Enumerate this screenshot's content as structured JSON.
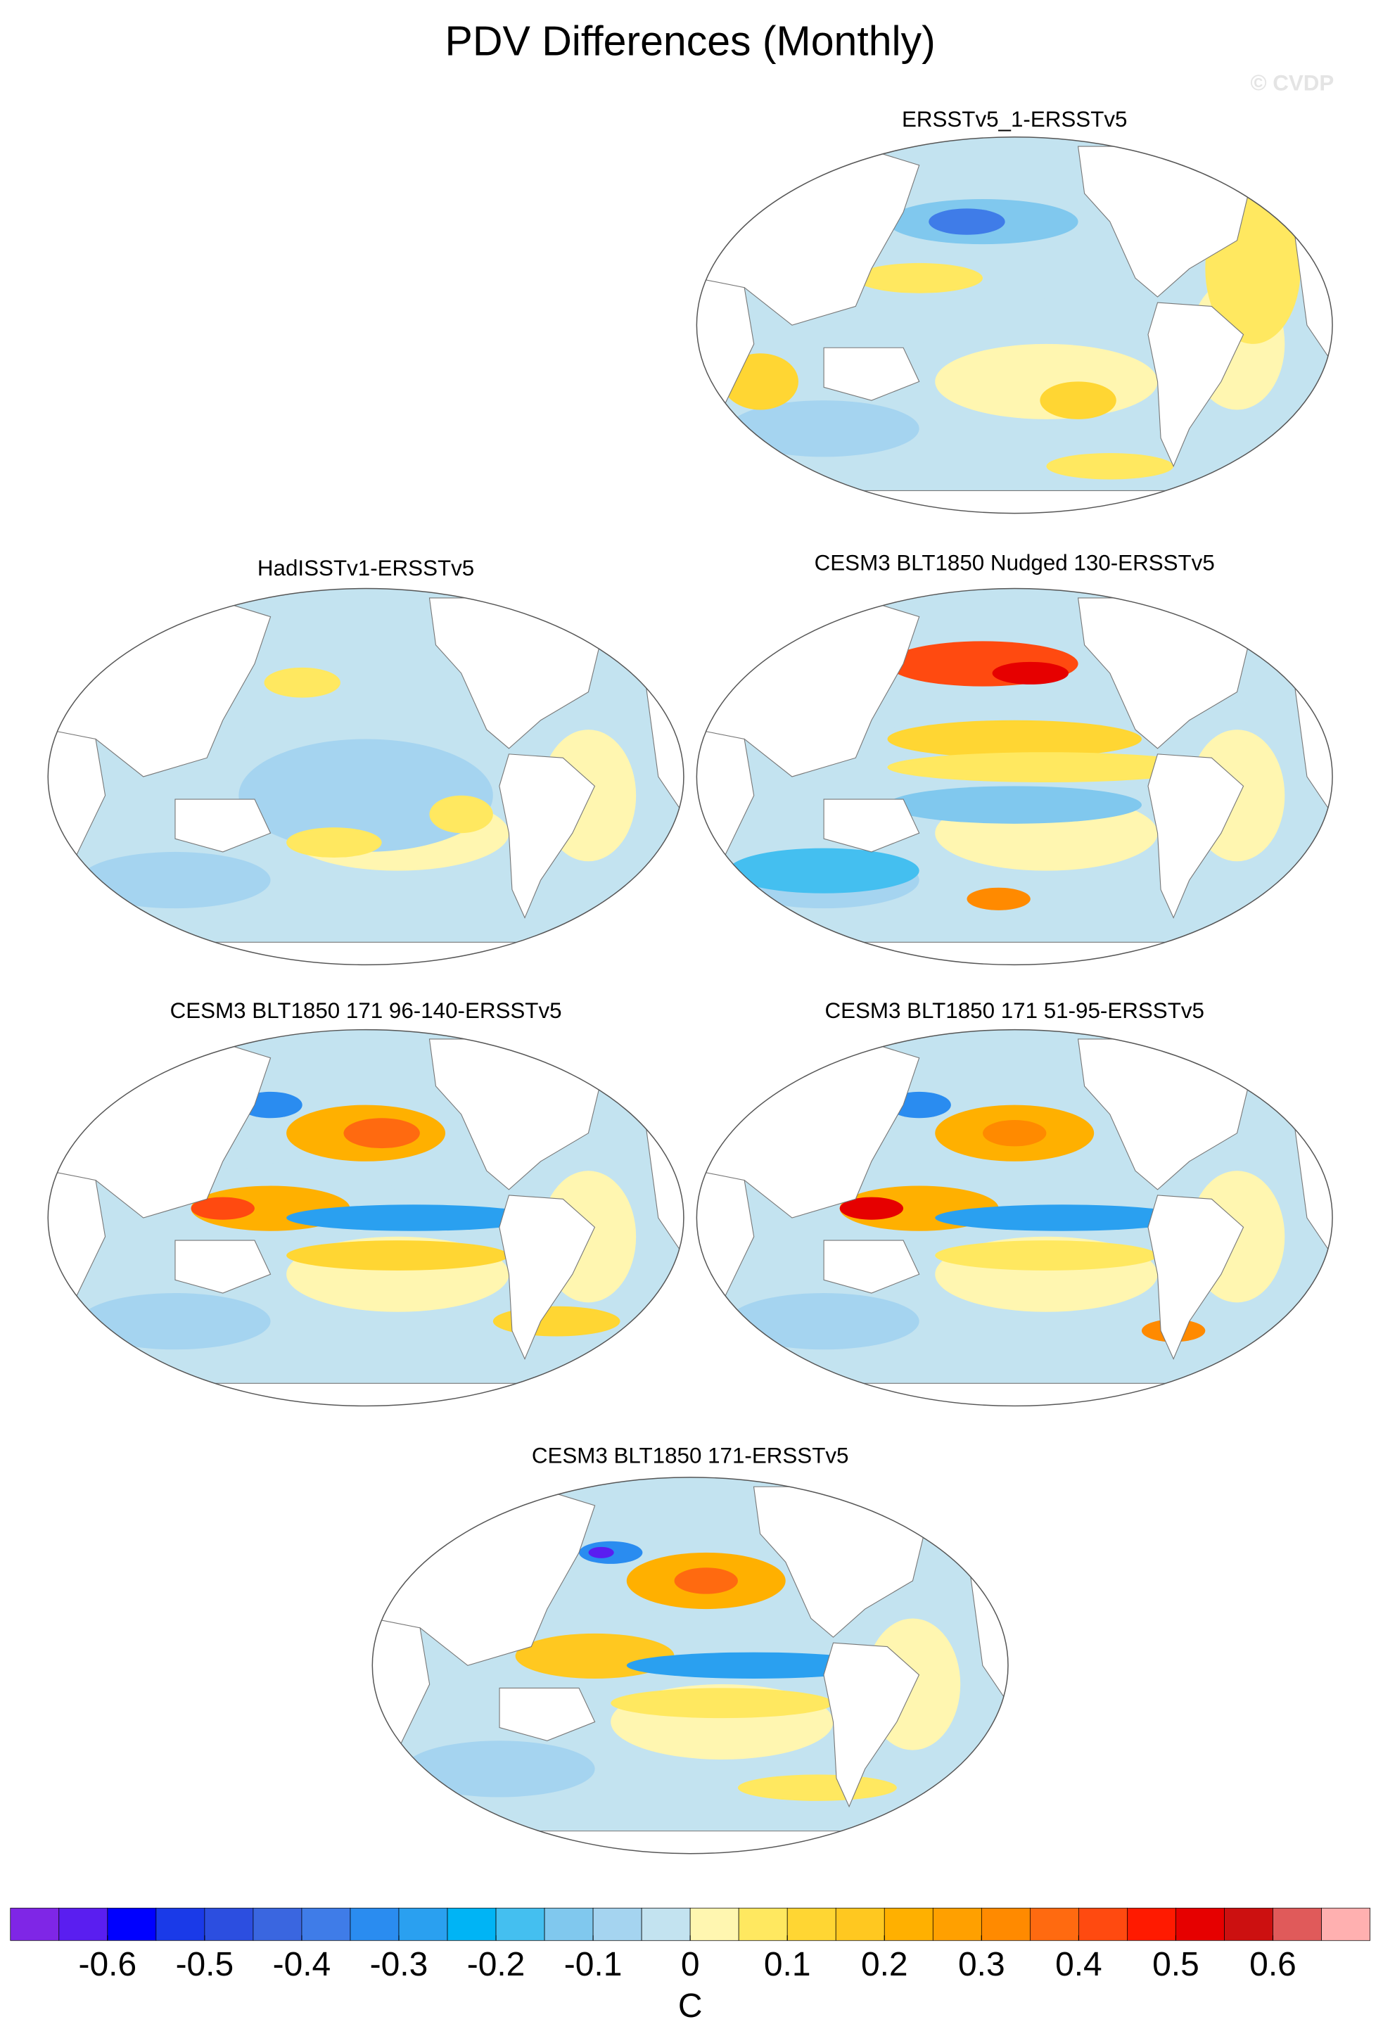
{
  "title": "PDV Differences (Monthly)",
  "watermark": "© CVDP",
  "panels": [
    {
      "title": "ERSSTv5_1-ERSSTv5"
    },
    {
      "title": "HadISSTv1-ERSSTv5"
    },
    {
      "title": "CESM3 BLT1850 Nudged 130-ERSSTv5"
    },
    {
      "title": "CESM3 BLT1850 171 96-140-ERSSTv5"
    },
    {
      "title": "CESM3 BLT1850 171 51-95-ERSSTv5"
    },
    {
      "title": "CESM3 BLT1850 171-ERSSTv5"
    }
  ],
  "colorbar": {
    "clim": [
      -0.7,
      0.7
    ],
    "ticks": [
      -0.6,
      -0.5,
      -0.4,
      -0.3,
      -0.2,
      -0.1,
      0,
      0.1,
      0.2,
      0.3,
      0.4,
      0.5,
      0.6
    ],
    "colors": [
      "#7f26e6",
      "#5a1ef0",
      "#0000ff",
      "#1a3ae8",
      "#2c4ee0",
      "#3a66e0",
      "#3f7ce8",
      "#2a8cf0",
      "#2aa0f0",
      "#00b4f5",
      "#44bff0",
      "#80c8ee",
      "#a5d4f0",
      "#c3e3f0",
      "#fff6b0",
      "#ffe860",
      "#ffd633",
      "#ffc820",
      "#ffb000",
      "#ffa000",
      "#ff8a00",
      "#ff6a10",
      "#ff4a10",
      "#ff1a00",
      "#e60000",
      "#cc1010",
      "#e05a5a",
      "#ffb0b0"
    ],
    "label": "C"
  }
}
